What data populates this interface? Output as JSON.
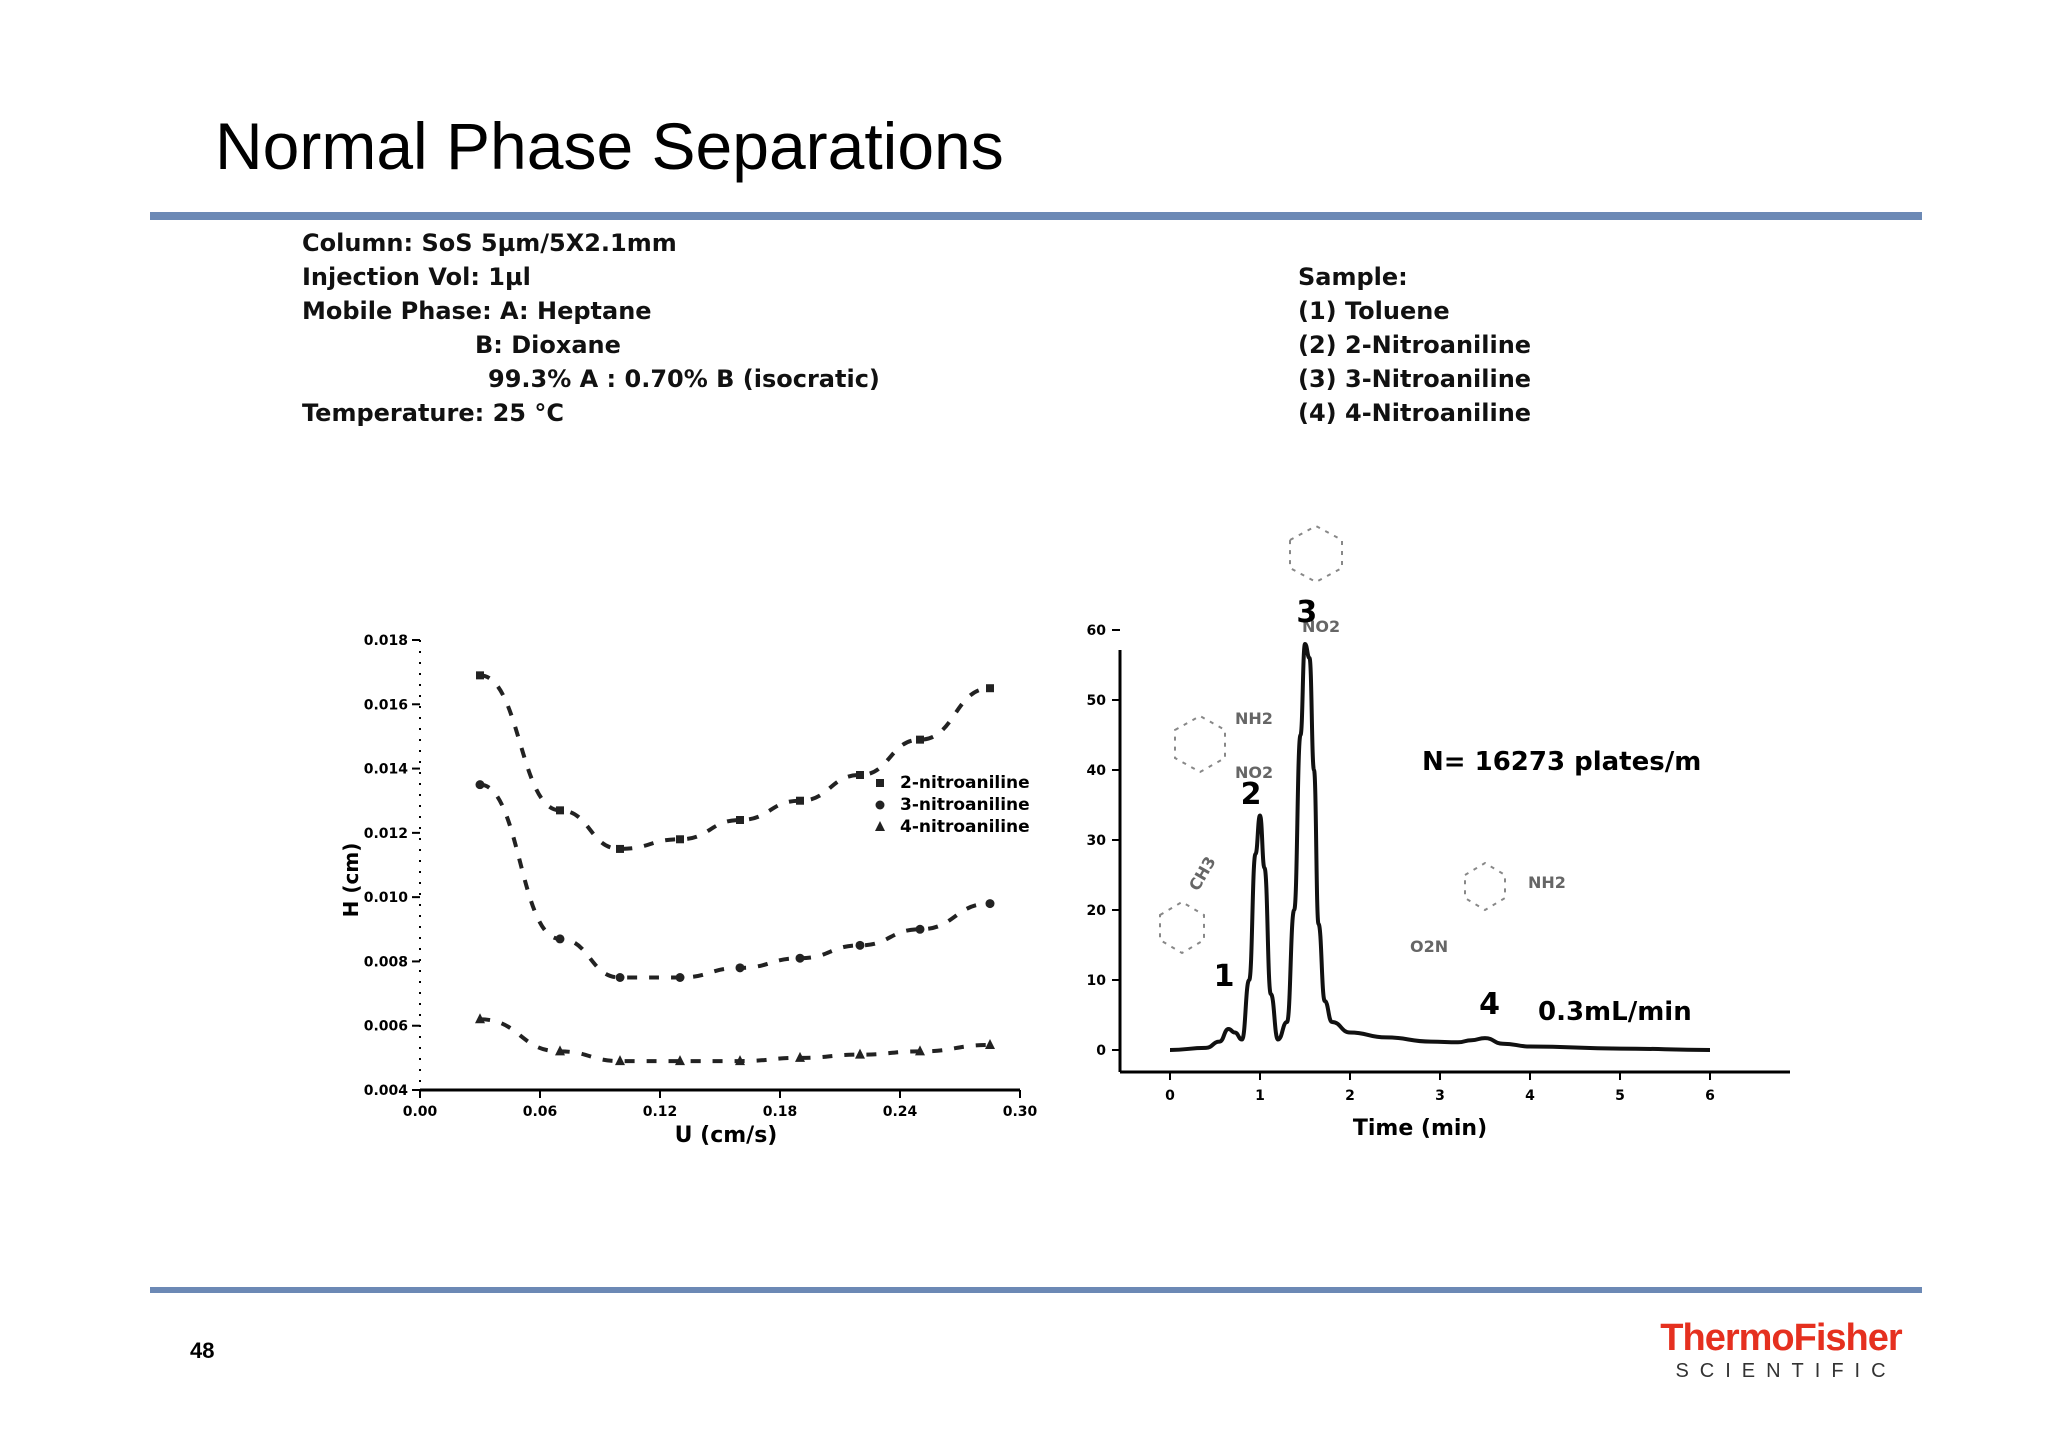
{
  "slide": {
    "title": "Normal Phase Separations",
    "page_number": "48",
    "brand": {
      "main": "ThermoFisher",
      "sub": "SCIENTIFIC",
      "color": "#E5301F"
    },
    "rule_color": "#6C89B5"
  },
  "conditions": {
    "column": "Column: SoS  5µm/5X2.1mm",
    "injection": "Injection Vol: 1µl",
    "mobile_a": "Mobile Phase: A: Heptane",
    "mobile_b": "B: Dioxane",
    "ratio": "99.3% A : 0.70% B (isocratic)",
    "temperature": "Temperature: 25 °C"
  },
  "sample": {
    "heading": "Sample:",
    "items": [
      "(1)   Toluene",
      "(2)   2-Nitroaniline",
      "(3)   3-Nitroaniline",
      "(4)   4-Nitroaniline"
    ]
  },
  "chart_data": [
    {
      "type": "scatter",
      "xlabel": "U (cm/s)",
      "ylabel": "H (cm)",
      "xlim": [
        0.0,
        0.3
      ],
      "ylim": [
        0.004,
        0.018
      ],
      "x_ticks": [
        "0.00",
        "0.06",
        "0.12",
        "0.18",
        "0.24",
        "0.30"
      ],
      "y_ticks": [
        "0.004",
        "0.006",
        "0.008",
        "0.010",
        "0.012",
        "0.014",
        "0.016",
        "0.018"
      ],
      "legend_position": "right",
      "series": [
        {
          "name": "2-nitroaniline",
          "marker": "square",
          "x": [
            0.03,
            0.07,
            0.1,
            0.13,
            0.16,
            0.19,
            0.22,
            0.25,
            0.285
          ],
          "y": [
            0.0169,
            0.0127,
            0.0115,
            0.0118,
            0.0124,
            0.013,
            0.0138,
            0.0149,
            0.0165
          ]
        },
        {
          "name": "3-nitroaniline",
          "marker": "circle",
          "x": [
            0.03,
            0.07,
            0.1,
            0.13,
            0.16,
            0.19,
            0.22,
            0.25,
            0.285
          ],
          "y": [
            0.0135,
            0.0087,
            0.0075,
            0.0075,
            0.0078,
            0.0081,
            0.0085,
            0.009,
            0.0098
          ]
        },
        {
          "name": "4-nitroaniline",
          "marker": "triangle",
          "x": [
            0.03,
            0.07,
            0.1,
            0.13,
            0.16,
            0.19,
            0.22,
            0.25,
            0.285
          ],
          "y": [
            0.0062,
            0.0052,
            0.0049,
            0.0049,
            0.0049,
            0.005,
            0.0051,
            0.0052,
            0.0054
          ]
        }
      ]
    },
    {
      "type": "line",
      "xlabel": "Time (min)",
      "ylabel": "",
      "xlim": [
        0,
        6
      ],
      "ylim": [
        0,
        60
      ],
      "x_ticks": [
        "0",
        "1",
        "2",
        "3",
        "4",
        "5",
        "6"
      ],
      "y_ticks": [
        "0",
        "10",
        "20",
        "30",
        "40",
        "50",
        "60"
      ],
      "grid": false,
      "series": [
        {
          "name": "chromatogram",
          "x": [
            0,
            0.4,
            0.55,
            0.65,
            0.72,
            0.8,
            0.88,
            0.95,
            1.0,
            1.05,
            1.12,
            1.2,
            1.3,
            1.38,
            1.45,
            1.5,
            1.55,
            1.6,
            1.65,
            1.72,
            1.8,
            2.0,
            2.4,
            2.9,
            3.2,
            3.35,
            3.5,
            3.7,
            4.0,
            5.0,
            6.0
          ],
          "y": [
            0,
            0.3,
            1.2,
            3.0,
            2.5,
            1.5,
            10,
            28,
            33.5,
            26,
            8,
            1.5,
            4,
            20,
            45,
            58,
            56,
            40,
            18,
            7,
            4,
            2.5,
            1.8,
            1.2,
            1.1,
            1.4,
            1.7,
            0.9,
            0.5,
            0.2,
            0
          ]
        }
      ],
      "peak_labels": [
        {
          "text": "1",
          "x": 0.6,
          "y": 8
        },
        {
          "text": "2",
          "x": 0.9,
          "y": 34
        },
        {
          "text": "3",
          "x": 1.52,
          "y": 60
        },
        {
          "text": "4",
          "x": 3.55,
          "y": 4
        }
      ],
      "annotations": {
        "plates": "N= 16273 plates/m",
        "flow": "0.3mL/min"
      },
      "structure_labels": [
        "NO2",
        "NH2",
        "NO2",
        "CH3",
        "O2N",
        "NH2"
      ]
    }
  ]
}
